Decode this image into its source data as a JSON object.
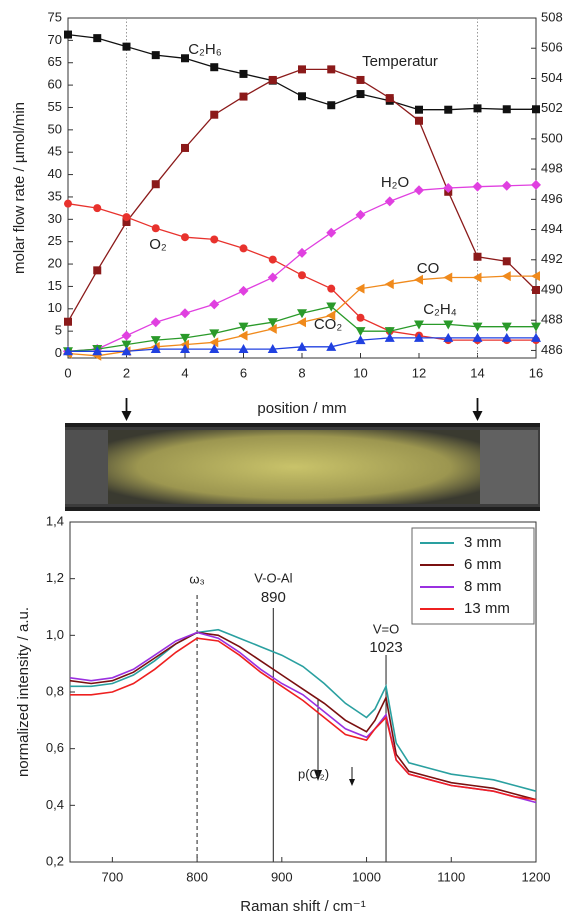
{
  "chart_data": [
    {
      "type": "line",
      "xlabel": "position / mm",
      "ylabel": "molar flow rate / µmol/min",
      "x": [
        0,
        1,
        2,
        3,
        4,
        5,
        6,
        7,
        8,
        9,
        10,
        11,
        12,
        13,
        14,
        15,
        16
      ],
      "xlim": [
        0,
        16
      ],
      "xticks": [
        0,
        2,
        4,
        6,
        8,
        10,
        12,
        14,
        16
      ],
      "ylim": [
        -1,
        75
      ],
      "yticks": [
        0,
        5,
        10,
        15,
        20,
        25,
        30,
        35,
        40,
        45,
        50,
        55,
        60,
        65,
        70,
        75
      ],
      "y2lim": [
        485.5,
        508
      ],
      "y2ticks": [
        486,
        488,
        490,
        492,
        494,
        496,
        498,
        500,
        502,
        504,
        506,
        508
      ],
      "marked_positions": [
        2,
        14
      ],
      "series": [
        {
          "name": "C₂H₆",
          "color": "#111111",
          "marker": "square",
          "values": [
            71.3,
            70.5,
            68.6,
            66.7,
            66,
            64,
            62.5,
            61,
            57.5,
            55.5,
            58,
            56.5,
            54.5,
            54.5,
            54.8,
            54.6,
            54.6
          ]
        },
        {
          "name": "Temperatur",
          "color": "#8b1a1a",
          "marker": "square",
          "axis": "y2",
          "values": [
            487.9,
            491.3,
            494.5,
            497,
            499.4,
            501.6,
            502.8,
            503.9,
            504.6,
            504.6,
            503.9,
            502.7,
            501.2,
            496.5,
            492.2,
            491.9,
            490
          ]
        },
        {
          "name": "O₂",
          "color": "#e8322d",
          "marker": "circle",
          "values": [
            33.5,
            32.5,
            30.5,
            28,
            26,
            25.5,
            23.5,
            21,
            17.5,
            14.5,
            8,
            5,
            4,
            3,
            3,
            3,
            3
          ]
        },
        {
          "name": "H₂O",
          "color": "#e040e0",
          "marker": "diamond",
          "values": [
            0.5,
            1,
            4,
            7,
            9,
            11,
            14,
            17,
            22.5,
            27,
            31,
            34,
            36.5,
            37,
            37.3,
            37.5,
            37.7
          ]
        },
        {
          "name": "CO",
          "color": "#f08a1c",
          "marker": "triangle-left",
          "values": [
            0,
            -0.5,
            0.5,
            1.5,
            2,
            2.5,
            4,
            5.5,
            7,
            8.5,
            14.5,
            15.5,
            16.5,
            17,
            17,
            17.3,
            17.3
          ]
        },
        {
          "name": "C₂H₄",
          "color": "#2a9a2a",
          "marker": "triangle-down",
          "values": [
            0.5,
            1,
            2,
            3,
            3.5,
            4.5,
            6,
            7,
            9,
            10.5,
            5,
            5,
            6.5,
            6.5,
            6,
            6,
            6
          ]
        },
        {
          "name": "CO₂",
          "color": "#2040e0",
          "marker": "triangle-up",
          "values": [
            0.5,
            0.5,
            0.5,
            1,
            1,
            1,
            1,
            1,
            1.5,
            1.5,
            3,
            3.5,
            3.5,
            3.5,
            3.5,
            3.5,
            3.5
          ]
        }
      ]
    },
    {
      "type": "line",
      "xlabel": "Raman shift / cm⁻¹",
      "ylabel": "normalized intensity / a.u.",
      "x": [
        650,
        675,
        700,
        725,
        750,
        775,
        800,
        825,
        850,
        875,
        900,
        925,
        950,
        975,
        1000,
        1010,
        1023,
        1035,
        1050,
        1075,
        1100,
        1125,
        1150,
        1175,
        1200
      ],
      "xlim": [
        650,
        1200
      ],
      "xticks": [
        700,
        800,
        900,
        1000,
        1100,
        1200
      ],
      "ylim": [
        0.2,
        1.4
      ],
      "yticks": [
        {
          "value": 0.2,
          "label": "0,2"
        },
        {
          "value": 0.4,
          "label": "0,4"
        },
        {
          "value": 0.6,
          "label": "0,6"
        },
        {
          "value": 0.8,
          "label": "0,8"
        },
        {
          "value": 1.0,
          "label": "1,0"
        },
        {
          "value": 1.2,
          "label": "1,2"
        },
        {
          "value": 1.4,
          "label": "1,4"
        }
      ],
      "legend": "top-right",
      "reference_lines": [
        {
          "x": 800,
          "label": "ω₃",
          "dashed": true
        },
        {
          "x": 890,
          "label": "V-O-Al"
        },
        {
          "x": 1023,
          "label": "V=O"
        }
      ],
      "annotation": "p(O₂)",
      "series": [
        {
          "name": "3 mm",
          "color": "#2aa0a0",
          "values": [
            0.82,
            0.82,
            0.83,
            0.86,
            0.91,
            0.97,
            1.01,
            1.02,
            0.99,
            0.96,
            0.93,
            0.89,
            0.83,
            0.76,
            0.71,
            0.74,
            0.82,
            0.62,
            0.55,
            0.53,
            0.51,
            0.5,
            0.49,
            0.47,
            0.45
          ]
        },
        {
          "name": "6 mm",
          "color": "#7a1010",
          "values": [
            0.84,
            0.83,
            0.84,
            0.87,
            0.92,
            0.97,
            1.01,
            1.0,
            0.96,
            0.91,
            0.86,
            0.81,
            0.76,
            0.7,
            0.66,
            0.7,
            0.78,
            0.58,
            0.52,
            0.5,
            0.48,
            0.47,
            0.46,
            0.44,
            0.42
          ]
        },
        {
          "name": "8 mm",
          "color": "#9a30e0",
          "values": [
            0.85,
            0.84,
            0.85,
            0.88,
            0.93,
            0.98,
            1.01,
            0.99,
            0.94,
            0.88,
            0.83,
            0.79,
            0.73,
            0.67,
            0.64,
            0.67,
            0.72,
            0.56,
            0.51,
            0.49,
            0.47,
            0.46,
            0.45,
            0.43,
            0.41
          ]
        },
        {
          "name": "13 mm",
          "color": "#ee2020",
          "values": [
            0.79,
            0.79,
            0.8,
            0.83,
            0.88,
            0.94,
            0.99,
            0.98,
            0.93,
            0.87,
            0.82,
            0.77,
            0.71,
            0.65,
            0.63,
            0.67,
            0.71,
            0.56,
            0.51,
            0.49,
            0.47,
            0.46,
            0.45,
            0.43,
            0.42
          ]
        }
      ]
    }
  ]
}
